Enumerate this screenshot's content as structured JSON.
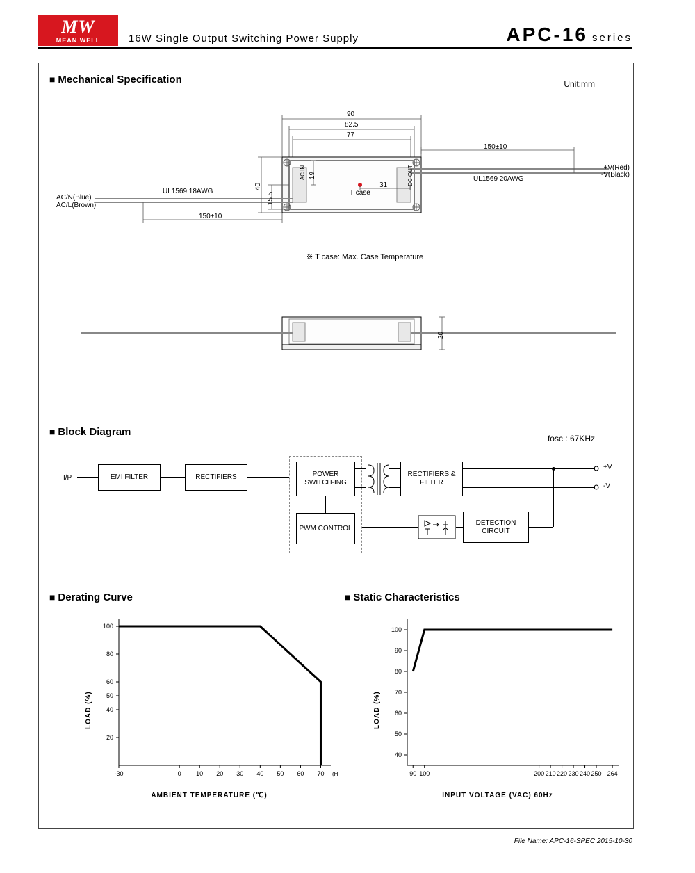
{
  "header": {
    "logo_top": "MW",
    "logo_bottom": "MEAN WELL",
    "subtitle": "16W Single Output Switching Power Supply",
    "model": "APC-16",
    "series_suffix": "series"
  },
  "mech_spec": {
    "title": "Mechanical Specification",
    "unit_label": "Unit:mm",
    "dims": {
      "w90": "90",
      "w82": "82.5",
      "w77": "77",
      "h40": "40",
      "h155": "15.5",
      "d19": "19",
      "d31": "31",
      "h20": "20"
    },
    "labels": {
      "ac_in": "AC IN",
      "dc_out": "DC OUT",
      "tcase": "T case",
      "left_wire": "UL1569  18AWG",
      "right_wire": "UL1569  20AWG",
      "acn": "AC/N(Blue)",
      "acl": "AC/L(Brown)",
      "posv": "+V(Red)",
      "negv": "-V(Black)",
      "len_left": "150±10",
      "len_right": "150±10"
    },
    "tcase_note": "※ T case: Max. Case Temperature"
  },
  "block_diagram": {
    "title": "Block Diagram",
    "fosc": "fosc : 67KHz",
    "io_label": "I/P",
    "boxes": {
      "emi": "EMI FILTER",
      "rect1": "RECTIFIERS",
      "pswitch": "POWER SWITCH-ING",
      "pwm": "PWM CONTROL",
      "rect2": "RECTIFIERS & FILTER",
      "detect": "DETECTION CIRCUIT"
    },
    "out_pos": "+V",
    "out_neg": "-V"
  },
  "derating": {
    "title": "Derating Curve",
    "x_title": "AMBIENT TEMPERATURE (℃)",
    "y_title": "LOAD (%)",
    "horizontal": "(HORIZONTAL)",
    "x_ticks": [
      "-30",
      "0",
      "10",
      "20",
      "30",
      "40",
      "50",
      "60",
      "70"
    ],
    "y_ticks": [
      "20",
      "40",
      "50",
      "60",
      "80",
      "100"
    ],
    "line_color": "#000",
    "points": [
      [
        -30,
        100
      ],
      [
        40,
        100
      ],
      [
        70,
        60
      ],
      [
        70,
        0
      ]
    ]
  },
  "static": {
    "title": "Static Characteristics",
    "x_title": "INPUT VOLTAGE (VAC) 60Hz",
    "y_title": "LOAD (%)",
    "x_ticks": [
      "90",
      "100",
      "200",
      "210",
      "220",
      "230",
      "240",
      "250",
      "264"
    ],
    "y_ticks": [
      "40",
      "50",
      "60",
      "70",
      "80",
      "90",
      "100"
    ],
    "line_color": "#000",
    "points": [
      [
        90,
        80
      ],
      [
        100,
        100
      ],
      [
        264,
        100
      ]
    ]
  },
  "footer": "File Name: APC-16-SPEC   2015-10-30"
}
